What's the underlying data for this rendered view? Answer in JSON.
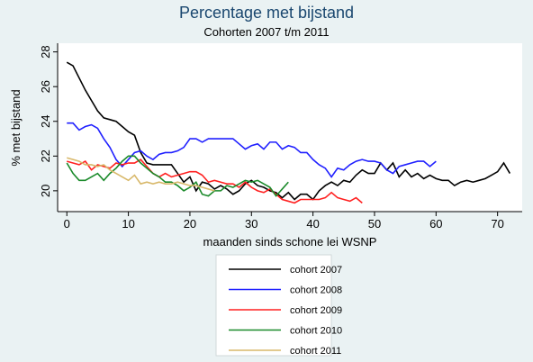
{
  "chart_data": {
    "type": "line",
    "title": "Percentage met bijstand",
    "subtitle": "Cohorten 2007 t/m 2011",
    "x_label": "maanden sinds schone lei WSNP",
    "y_label": "% met bijstand",
    "xlim": [
      -1.5,
      74
    ],
    "ylim": [
      18.8,
      28.5
    ],
    "xticks": [
      0,
      10,
      20,
      30,
      40,
      50,
      60,
      70
    ],
    "yticks": [
      20,
      22,
      24,
      26,
      28
    ],
    "grid": false,
    "legend": "bottom",
    "series": [
      {
        "name": "cohort 2007",
        "color": "#000000",
        "x": [
          0,
          1,
          2,
          3,
          4,
          5,
          6,
          7,
          8,
          9,
          10,
          11,
          12,
          13,
          14,
          15,
          16,
          17,
          18,
          19,
          20,
          21,
          22,
          23,
          24,
          25,
          26,
          27,
          28,
          29,
          30,
          31,
          32,
          33,
          34,
          35,
          36,
          37,
          38,
          39,
          40,
          41,
          42,
          43,
          44,
          45,
          46,
          47,
          48,
          49,
          50,
          51,
          52,
          53,
          54,
          55,
          56,
          57,
          58,
          59,
          60,
          61,
          62,
          63,
          64,
          65,
          66,
          67,
          68,
          69,
          70,
          71,
          72
        ],
        "values": [
          27.4,
          27.2,
          26.5,
          25.8,
          25.2,
          24.6,
          24.2,
          24.1,
          24.0,
          23.7,
          23.4,
          23.2,
          22.2,
          21.6,
          21.5,
          21.5,
          21.5,
          21.5,
          21.0,
          20.5,
          20.8,
          20.0,
          20.5,
          20.4,
          20.1,
          20.3,
          20.1,
          19.8,
          20.0,
          20.4,
          20.6,
          20.3,
          20.2,
          20.0,
          19.9,
          19.6,
          19.9,
          19.5,
          19.8,
          19.8,
          19.5,
          20.0,
          20.3,
          20.5,
          20.3,
          20.6,
          20.5,
          20.9,
          21.2,
          21.0,
          21.0,
          21.6,
          21.2,
          21.6,
          20.8,
          21.2,
          20.8,
          21.0,
          20.7,
          20.9,
          20.7,
          20.6,
          20.6,
          20.3,
          20.5,
          20.6,
          20.5,
          20.6,
          20.7,
          20.9,
          21.1,
          21.6,
          21.0
        ]
      },
      {
        "name": "cohort 2008",
        "color": "#2020ff",
        "x": [
          0,
          1,
          2,
          3,
          4,
          5,
          6,
          7,
          8,
          9,
          10,
          11,
          12,
          13,
          14,
          15,
          16,
          17,
          18,
          19,
          20,
          21,
          22,
          23,
          24,
          25,
          26,
          27,
          28,
          29,
          30,
          31,
          32,
          33,
          34,
          35,
          36,
          37,
          38,
          39,
          40,
          41,
          42,
          43,
          44,
          45,
          46,
          47,
          48,
          49,
          50,
          51,
          52,
          53,
          54,
          55,
          56,
          57,
          58,
          59,
          60
        ],
        "values": [
          23.9,
          23.9,
          23.5,
          23.7,
          23.8,
          23.6,
          23.0,
          22.5,
          21.8,
          21.4,
          21.8,
          22.2,
          22.3,
          22.0,
          21.8,
          22.1,
          22.2,
          22.2,
          22.3,
          22.5,
          23.0,
          23.0,
          22.8,
          23.0,
          23.0,
          23.0,
          23.0,
          23.0,
          22.7,
          22.4,
          22.6,
          22.7,
          22.4,
          22.8,
          22.8,
          22.4,
          22.6,
          22.5,
          22.2,
          22.2,
          21.8,
          21.5,
          21.3,
          20.8,
          21.3,
          21.2,
          21.5,
          21.7,
          21.8,
          21.7,
          21.7,
          21.6,
          21.2,
          21.0,
          21.4,
          21.5,
          21.6,
          21.7,
          21.7,
          21.4,
          21.7
        ]
      },
      {
        "name": "cohort 2009",
        "color": "#ff2020",
        "x": [
          0,
          1,
          2,
          3,
          4,
          5,
          6,
          7,
          8,
          9,
          10,
          11,
          12,
          13,
          14,
          15,
          16,
          17,
          18,
          19,
          20,
          21,
          22,
          23,
          24,
          25,
          26,
          27,
          28,
          29,
          30,
          31,
          32,
          33,
          34,
          35,
          36,
          37,
          38,
          39,
          40,
          41,
          42,
          43,
          44,
          45,
          46,
          47,
          48
        ],
        "values": [
          21.7,
          21.6,
          21.5,
          21.7,
          21.2,
          21.5,
          21.4,
          21.3,
          21.6,
          21.5,
          21.6,
          21.6,
          21.8,
          21.4,
          21.0,
          20.8,
          21.0,
          20.8,
          20.9,
          21.0,
          21.1,
          21.1,
          20.9,
          20.5,
          20.6,
          20.5,
          20.4,
          20.4,
          20.2,
          20.5,
          20.2,
          20.0,
          19.9,
          20.1,
          19.8,
          19.5,
          19.4,
          19.3,
          19.5,
          19.5,
          19.5,
          19.5,
          19.6,
          19.9,
          19.6,
          19.5,
          19.4,
          19.6,
          19.3
        ]
      },
      {
        "name": "cohort 2010",
        "color": "#1a8a2a",
        "x": [
          0,
          1,
          2,
          3,
          4,
          5,
          6,
          7,
          8,
          9,
          10,
          11,
          12,
          13,
          14,
          15,
          16,
          17,
          18,
          19,
          20,
          21,
          22,
          23,
          24,
          25,
          26,
          27,
          28,
          29,
          30,
          31,
          32,
          33,
          34,
          35,
          36
        ],
        "values": [
          21.6,
          21.0,
          20.6,
          20.6,
          20.8,
          21.0,
          20.6,
          21.0,
          21.3,
          21.7,
          22.0,
          22.0,
          21.6,
          21.3,
          21.0,
          20.8,
          20.5,
          20.5,
          20.3,
          20.0,
          20.2,
          20.5,
          19.8,
          19.7,
          20.0,
          20.0,
          20.3,
          20.2,
          20.4,
          20.6,
          20.5,
          20.6,
          20.4,
          20.2,
          19.7,
          20.1,
          20.5
        ]
      },
      {
        "name": "cohort 2011",
        "color": "#d8b86a",
        "x": [
          0,
          1,
          2,
          3,
          4,
          5,
          6,
          7,
          8,
          9,
          10,
          11,
          12,
          13,
          14,
          15,
          16,
          17,
          18,
          19,
          20,
          21,
          22,
          23,
          24
        ],
        "values": [
          21.9,
          21.8,
          21.7,
          21.5,
          21.5,
          21.4,
          21.5,
          21.2,
          21.0,
          20.8,
          20.6,
          20.9,
          20.4,
          20.5,
          20.4,
          20.5,
          20.4,
          20.4,
          20.5,
          20.4,
          20.3,
          20.3,
          20.2,
          20.1,
          20.0
        ]
      }
    ]
  }
}
